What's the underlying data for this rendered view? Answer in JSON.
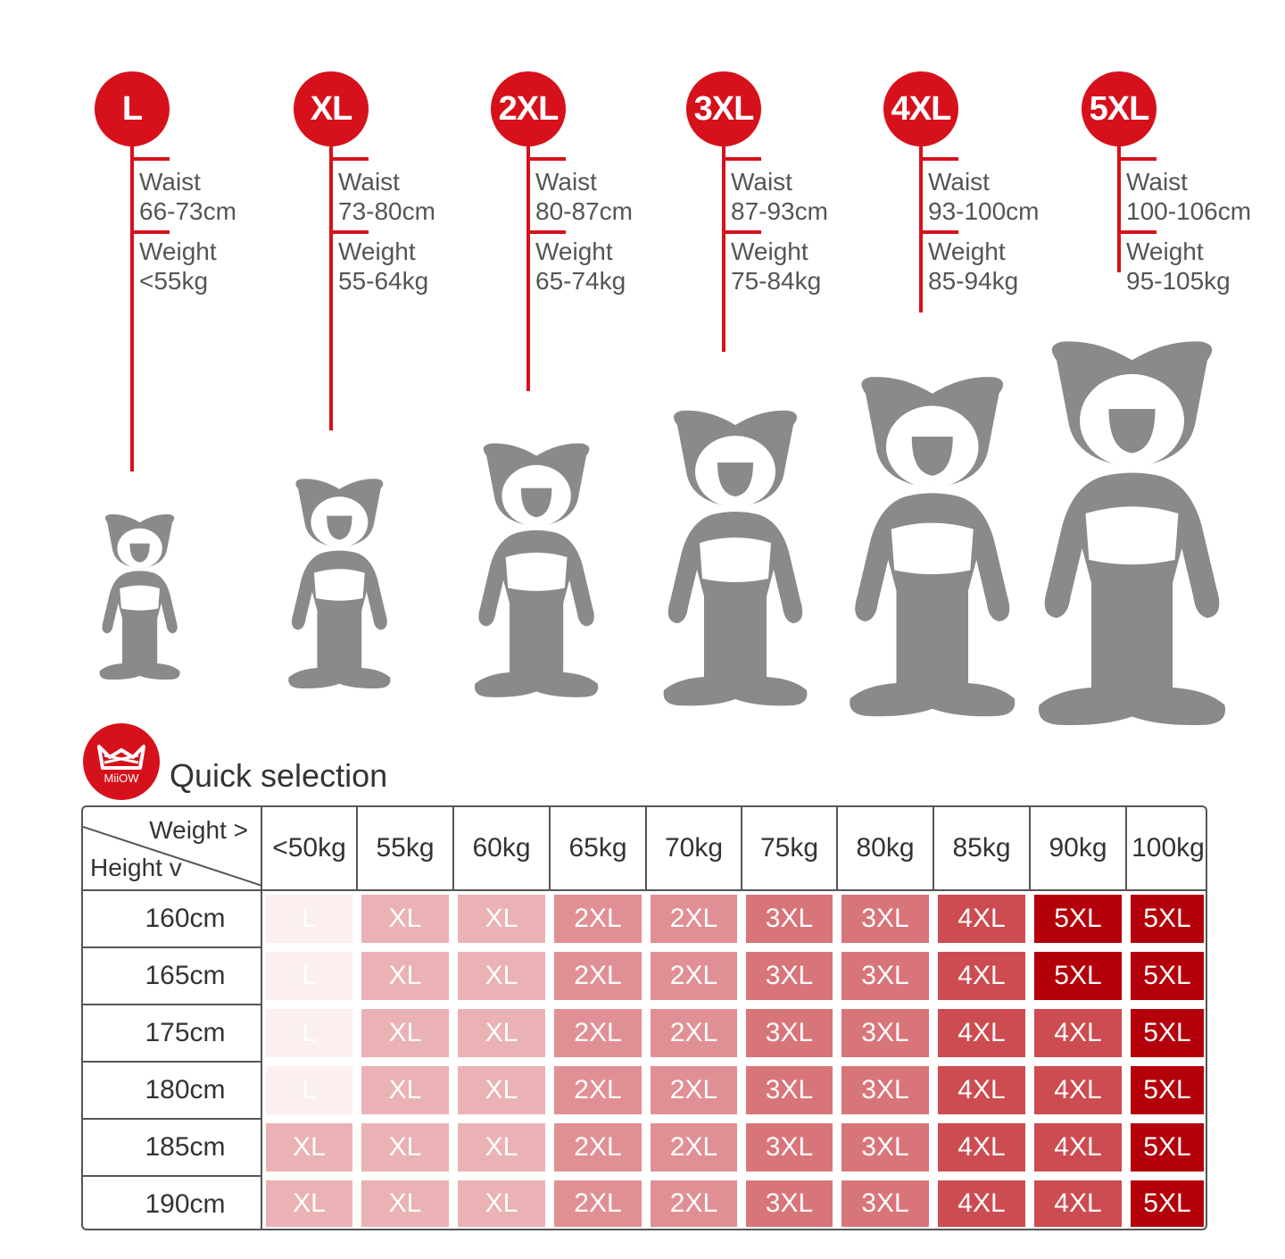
{
  "sizes": [
    {
      "label": "L",
      "waist_label": "Waist",
      "waist": "66-73cm",
      "weight_label": "Weight",
      "weight": "<55kg"
    },
    {
      "label": "XL",
      "waist_label": "Waist",
      "waist": "73-80cm",
      "weight_label": "Weight",
      "weight": "55-64kg"
    },
    {
      "label": "2XL",
      "waist_label": "Waist",
      "waist": "80-87cm",
      "weight_label": "Weight",
      "weight": "65-74kg"
    },
    {
      "label": "3XL",
      "waist_label": "Waist",
      "waist": "87-93cm",
      "weight_label": "Weight",
      "weight": "75-84kg"
    },
    {
      "label": "4XL",
      "waist_label": "Waist",
      "waist": "93-100cm",
      "weight_label": "Weight",
      "weight": "85-94kg"
    },
    {
      "label": "5XL",
      "waist_label": "Waist",
      "waist": "100-106cm",
      "weight_label": "Weight",
      "weight": "95-105kg"
    }
  ],
  "quick_selection": {
    "logo_text": "MiiOW",
    "title": "Quick selection",
    "corner_weight": "Weight >",
    "corner_height": "Height v",
    "weights": [
      "<50kg",
      "55kg",
      "60kg",
      "65kg",
      "70kg",
      "75kg",
      "80kg",
      "85kg",
      "90kg",
      "100kg"
    ],
    "rows": [
      {
        "height": "160cm",
        "cells": [
          "L",
          "XL",
          "XL",
          "2XL",
          "2XL",
          "3XL",
          "3XL",
          "4XL",
          "5XL",
          "5XL"
        ]
      },
      {
        "height": "165cm",
        "cells": [
          "L",
          "XL",
          "XL",
          "2XL",
          "2XL",
          "3XL",
          "3XL",
          "4XL",
          "5XL",
          "5XL"
        ]
      },
      {
        "height": "175cm",
        "cells": [
          "L",
          "XL",
          "XL",
          "2XL",
          "2XL",
          "3XL",
          "3XL",
          "4XL",
          "4XL",
          "5XL"
        ]
      },
      {
        "height": "180cm",
        "cells": [
          "L",
          "XL",
          "XL",
          "2XL",
          "2XL",
          "3XL",
          "3XL",
          "4XL",
          "4XL",
          "5XL"
        ]
      },
      {
        "height": "185cm",
        "cells": [
          "XL",
          "XL",
          "XL",
          "2XL",
          "2XL",
          "3XL",
          "3XL",
          "4XL",
          "4XL",
          "5XL"
        ]
      },
      {
        "height": "190cm",
        "cells": [
          "XL",
          "XL",
          "XL",
          "2XL",
          "2XL",
          "3XL",
          "3XL",
          "4XL",
          "4XL",
          "5XL"
        ]
      }
    ],
    "size_colors": {
      "L": "#fbeff0",
      "XL": "#eab2b5",
      "2XL": "#e09094",
      "3XL": "#d87579",
      "4XL": "#cc4c51",
      "5XL": "#b3000a"
    }
  },
  "colors": {
    "accent": "#d6111c",
    "figure": "#8a8a8a"
  }
}
